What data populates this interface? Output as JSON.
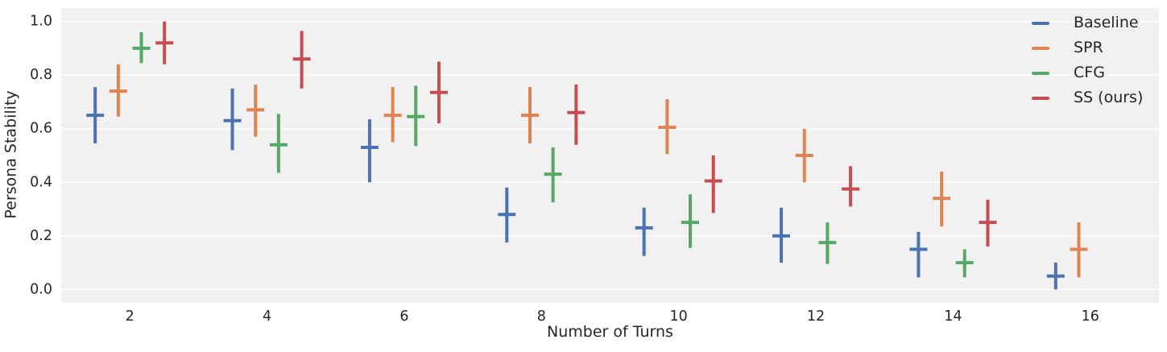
{
  "figure": {
    "background": "#ffffff",
    "axes_background": "#f1f1f1",
    "gridline_color": "#ffffff",
    "text_color": "#262626"
  },
  "chart_data": {
    "type": "scatter",
    "subtype": "pointplot-with-errorbars",
    "title": "",
    "xlabel": "Number of Turns",
    "ylabel": "Persona Stability",
    "x_ticks": [
      2,
      4,
      6,
      8,
      10,
      12,
      14,
      16
    ],
    "y_ticks": [
      0.0,
      0.2,
      0.4,
      0.6,
      0.8,
      1.0
    ],
    "y_tick_labels": [
      "0.0",
      "0.2",
      "0.4",
      "0.6",
      "0.8",
      "1.0"
    ],
    "xlim": [
      1,
      17
    ],
    "ylim": [
      -0.05,
      1.05
    ],
    "grid": "horizontal",
    "legend_position": "upper right",
    "series": [
      {
        "name": "Baseline",
        "color": "#4C72B0",
        "values": [
          0.65,
          0.63,
          0.53,
          0.28,
          0.23,
          0.2,
          0.15,
          0.05
        ],
        "err_low": [
          0.545,
          0.52,
          0.4,
          0.175,
          0.125,
          0.1,
          0.045,
          0.0
        ],
        "err_high": [
          0.755,
          0.75,
          0.635,
          0.38,
          0.305,
          0.305,
          0.215,
          0.1
        ]
      },
      {
        "name": "SPR",
        "color": "#DD8452",
        "values": [
          0.74,
          0.67,
          0.65,
          0.65,
          0.605,
          0.5,
          0.34,
          0.15
        ],
        "err_low": [
          0.645,
          0.57,
          0.55,
          0.545,
          0.505,
          0.4,
          0.235,
          0.045
        ],
        "err_high": [
          0.84,
          0.765,
          0.755,
          0.755,
          0.71,
          0.6,
          0.44,
          0.25
        ]
      },
      {
        "name": "CFG",
        "color": "#55A868",
        "values": [
          0.9,
          0.54,
          0.645,
          0.43,
          0.25,
          0.175,
          0.1,
          null
        ],
        "err_low": [
          0.845,
          0.435,
          0.535,
          0.325,
          0.155,
          0.095,
          0.045,
          null
        ],
        "err_high": [
          0.96,
          0.655,
          0.76,
          0.53,
          0.355,
          0.25,
          0.15,
          null
        ]
      },
      {
        "name": "SS (ours)",
        "color": "#C44E52",
        "values": [
          0.92,
          0.86,
          0.735,
          0.66,
          0.405,
          0.375,
          0.25,
          null
        ],
        "err_low": [
          0.84,
          0.75,
          0.62,
          0.54,
          0.285,
          0.31,
          0.16,
          null
        ],
        "err_high": [
          1.0,
          0.965,
          0.85,
          0.765,
          0.5,
          0.46,
          0.335,
          null
        ]
      }
    ]
  }
}
